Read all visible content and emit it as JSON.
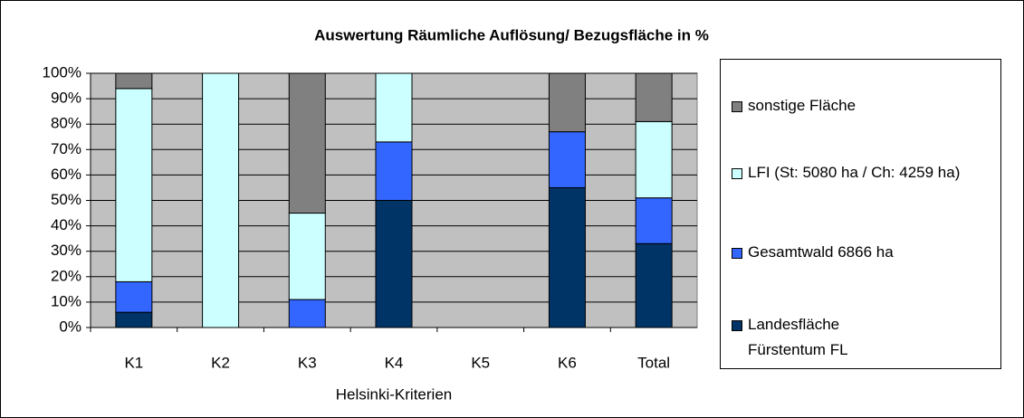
{
  "chart_data": {
    "type": "stacked_bar",
    "title": "Auswertung Räumliche Auflösung/ Bezugsfläche in %",
    "x_label": "Helsinki-Kriterien",
    "categories": [
      "K1",
      "K2",
      "K3",
      "K4",
      "K5",
      "K6",
      "Total"
    ],
    "series": [
      {
        "name": "Landesfläche Fürstentum FL",
        "color": "#003366",
        "values": [
          6,
          0,
          0,
          50,
          0,
          55,
          33
        ]
      },
      {
        "name": "Gesamtwald 6866 ha",
        "color": "#3366ff",
        "values": [
          12,
          0,
          11,
          23,
          0,
          22,
          18
        ]
      },
      {
        "name": "LFI (St: 5080 ha / Ch: 4259 ha)",
        "color": "#ccffff",
        "values": [
          76,
          100,
          34,
          27,
          0,
          0,
          30
        ]
      },
      {
        "name": "sonstige Fläche",
        "color": "#808080",
        "values": [
          6,
          0,
          55,
          0,
          0,
          23,
          19
        ]
      }
    ],
    "ylim": [
      0,
      100
    ],
    "yticks": [
      {
        "value": 0,
        "label": "0%"
      },
      {
        "value": 10,
        "label": "10%"
      },
      {
        "value": 20,
        "label": "20%"
      },
      {
        "value": 30,
        "label": "30%"
      },
      {
        "value": 40,
        "label": "40%"
      },
      {
        "value": 50,
        "label": "50%"
      },
      {
        "value": 60,
        "label": "60%"
      },
      {
        "value": 70,
        "label": "70%"
      },
      {
        "value": 80,
        "label": "80%"
      },
      {
        "value": 90,
        "label": "90%"
      },
      {
        "value": 100,
        "label": "100%"
      }
    ],
    "grid": true,
    "legend": "right"
  }
}
